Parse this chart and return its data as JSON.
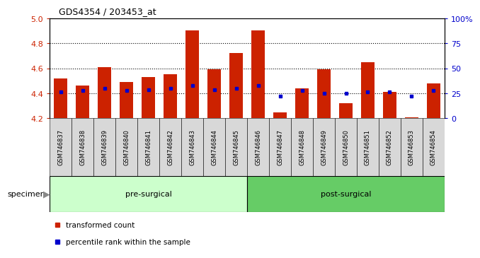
{
  "title": "GDS4354 / 203453_at",
  "samples": [
    "GSM746837",
    "GSM746838",
    "GSM746839",
    "GSM746840",
    "GSM746841",
    "GSM746842",
    "GSM746843",
    "GSM746844",
    "GSM746845",
    "GSM746846",
    "GSM746847",
    "GSM746848",
    "GSM746849",
    "GSM746850",
    "GSM746851",
    "GSM746852",
    "GSM746853",
    "GSM746854"
  ],
  "bar_heights": [
    4.52,
    4.46,
    4.61,
    4.49,
    4.53,
    4.55,
    4.9,
    4.59,
    4.72,
    4.9,
    4.25,
    4.44,
    4.59,
    4.32,
    4.65,
    4.41,
    4.21,
    4.48
  ],
  "percentile_values": [
    4.41,
    4.42,
    4.44,
    4.42,
    4.43,
    4.44,
    4.46,
    4.43,
    4.44,
    4.46,
    4.38,
    4.42,
    4.4,
    4.4,
    4.41,
    4.41,
    4.38,
    4.42
  ],
  "bar_bottom": 4.2,
  "ylim_left": [
    4.2,
    5.0
  ],
  "ylim_right": [
    0,
    100
  ],
  "yticks_left": [
    4.2,
    4.4,
    4.6,
    4.8,
    5.0
  ],
  "yticks_right": [
    0,
    25,
    50,
    75,
    100
  ],
  "ytick_labels_right": [
    "0",
    "25",
    "50",
    "75",
    "100%"
  ],
  "grid_values": [
    4.4,
    4.6,
    4.8
  ],
  "bar_color": "#cc2200",
  "percentile_color": "#0000cc",
  "groups": [
    {
      "label": "pre-surgical",
      "start": 0,
      "end": 9,
      "color": "#ccffcc"
    },
    {
      "label": "post-surgical",
      "start": 9,
      "end": 18,
      "color": "#66cc66"
    }
  ],
  "specimen_label": "specimen",
  "legend_items": [
    {
      "label": "transformed count",
      "color": "#cc2200"
    },
    {
      "label": "percentile rank within the sample",
      "color": "#0000cc"
    }
  ],
  "bar_width": 0.6,
  "background_color": "#ffffff",
  "plot_bg_color": "#ffffff",
  "tick_label_bg": "#c8c8c8",
  "spine_color": "#000000"
}
